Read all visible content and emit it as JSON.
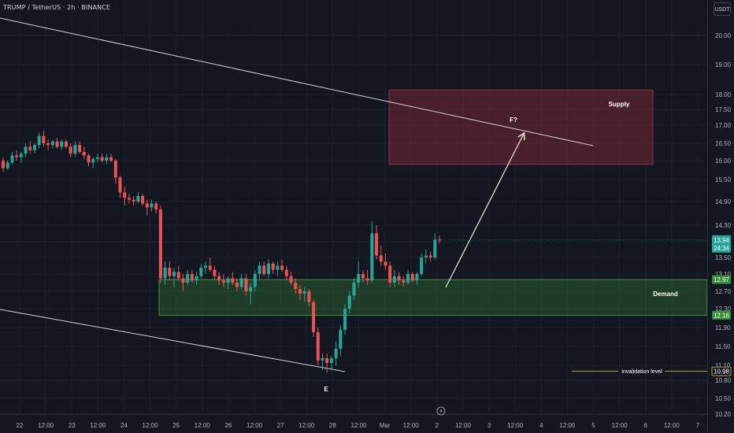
{
  "header": {
    "title": "TRUMP / TetherUS · 2h · BINANCE"
  },
  "currency_button": "USDT",
  "chart_data": {
    "type": "candlestick",
    "symbol": "TRUMP / TetherUS",
    "interval": "2h",
    "exchange": "BINANCE",
    "y_axis": {
      "range": [
        10.2,
        20.3
      ],
      "ticks": [
        "20.00",
        "19.00",
        "18.00",
        "17.50",
        "17.00",
        "16.50",
        "16.00",
        "15.50",
        "14.90",
        "14.30",
        "13.90",
        "13.50",
        "13.10",
        "12.70",
        "12.30",
        "11.90",
        "11.50",
        "11.10",
        "10.80",
        "10.50",
        "10.20"
      ]
    },
    "x_axis": {
      "ticks": [
        "22",
        "12:00",
        "23",
        "12:00",
        "24",
        "12:00",
        "25",
        "12:00",
        "26",
        "12:00",
        "27",
        "12:00",
        "28",
        "12:00",
        "Mar",
        "12:00",
        "2",
        "12:00",
        "3",
        "12:00",
        "4",
        "12:00",
        "5",
        "12:00",
        "6",
        "12:00",
        "7"
      ]
    },
    "last_price": {
      "value": "13.94",
      "countdown": "24:34",
      "color": "#26a69a"
    },
    "zones": [
      {
        "name": "Supply",
        "top": 18.15,
        "bottom": 15.9,
        "color": "#8b2b3a"
      },
      {
        "name": "Demand",
        "top": 12.97,
        "bottom": 12.16,
        "top_label": "12.97",
        "bottom_label": "12.16",
        "color": "#2e6b34"
      }
    ],
    "invalidation": {
      "label": "invalidation level",
      "value": 10.98,
      "value_label": "10.98"
    },
    "annotations": {
      "target": "F?",
      "wave": "E"
    },
    "candles": [
      [
        16.0,
        16.1,
        15.7,
        15.8
      ],
      [
        15.8,
        16.0,
        15.75,
        15.95
      ],
      [
        15.95,
        16.25,
        15.9,
        16.15
      ],
      [
        16.15,
        16.3,
        16.0,
        16.1
      ],
      [
        16.1,
        16.25,
        15.95,
        16.2
      ],
      [
        16.2,
        16.5,
        16.1,
        16.4
      ],
      [
        16.4,
        16.55,
        16.2,
        16.3
      ],
      [
        16.3,
        16.5,
        16.2,
        16.45
      ],
      [
        16.45,
        16.8,
        16.35,
        16.7
      ],
      [
        16.7,
        16.85,
        16.4,
        16.5
      ],
      [
        16.5,
        16.6,
        16.3,
        16.45
      ],
      [
        16.45,
        16.6,
        16.35,
        16.55
      ],
      [
        16.55,
        16.65,
        16.35,
        16.4
      ],
      [
        16.4,
        16.6,
        16.3,
        16.55
      ],
      [
        16.55,
        16.6,
        16.35,
        16.4
      ],
      [
        16.4,
        16.5,
        16.1,
        16.2
      ],
      [
        16.2,
        16.55,
        16.1,
        16.45
      ],
      [
        16.45,
        16.55,
        16.2,
        16.25
      ],
      [
        16.25,
        16.4,
        16.05,
        16.15
      ],
      [
        16.15,
        16.2,
        15.85,
        15.95
      ],
      [
        15.95,
        16.1,
        15.8,
        16.05
      ],
      [
        16.05,
        16.2,
        15.95,
        16.1
      ],
      [
        16.1,
        16.2,
        15.95,
        16.0
      ],
      [
        16.0,
        16.2,
        15.9,
        16.1
      ],
      [
        16.1,
        16.2,
        15.95,
        16.0
      ],
      [
        16.0,
        16.05,
        15.4,
        15.55
      ],
      [
        15.55,
        15.6,
        15.0,
        15.15
      ],
      [
        15.15,
        15.3,
        14.8,
        15.0
      ],
      [
        15.0,
        15.1,
        14.85,
        14.95
      ],
      [
        14.95,
        15.05,
        14.8,
        14.9
      ],
      [
        14.9,
        15.15,
        14.85,
        15.05
      ],
      [
        15.05,
        15.1,
        14.8,
        14.85
      ],
      [
        14.85,
        14.95,
        14.55,
        14.75
      ],
      [
        14.75,
        14.95,
        14.65,
        14.85
      ],
      [
        14.85,
        14.9,
        14.6,
        14.7
      ],
      [
        14.7,
        14.8,
        12.9,
        13.0
      ],
      [
        13.0,
        13.4,
        12.85,
        13.25
      ],
      [
        13.25,
        13.4,
        12.95,
        13.05
      ],
      [
        13.05,
        13.25,
        12.8,
        13.15
      ],
      [
        13.15,
        13.3,
        12.95,
        13.0
      ],
      [
        13.0,
        13.1,
        12.7,
        12.9
      ],
      [
        12.9,
        13.2,
        12.85,
        13.1
      ],
      [
        13.1,
        13.2,
        12.9,
        12.95
      ],
      [
        12.95,
        13.15,
        12.85,
        13.05
      ],
      [
        13.05,
        13.35,
        13.0,
        13.25
      ],
      [
        13.25,
        13.4,
        13.1,
        13.3
      ],
      [
        13.3,
        13.5,
        13.15,
        13.2
      ],
      [
        13.2,
        13.3,
        12.95,
        13.05
      ],
      [
        13.05,
        13.15,
        12.85,
        12.95
      ],
      [
        12.95,
        13.1,
        12.8,
        12.9
      ],
      [
        12.9,
        13.05,
        12.75,
        13.0
      ],
      [
        13.0,
        13.15,
        12.85,
        12.9
      ],
      [
        12.9,
        13.0,
        12.7,
        12.8
      ],
      [
        12.8,
        13.1,
        12.75,
        13.0
      ],
      [
        13.0,
        13.1,
        12.6,
        12.7
      ],
      [
        12.7,
        12.9,
        12.4,
        12.8
      ],
      [
        12.8,
        13.2,
        12.7,
        13.1
      ],
      [
        13.1,
        13.4,
        13.0,
        13.3
      ],
      [
        13.3,
        13.4,
        13.05,
        13.1
      ],
      [
        13.1,
        13.45,
        13.0,
        13.35
      ],
      [
        13.35,
        13.4,
        13.1,
        13.2
      ],
      [
        13.2,
        13.4,
        13.05,
        13.3
      ],
      [
        13.3,
        13.45,
        13.15,
        13.2
      ],
      [
        13.2,
        13.3,
        12.95,
        13.05
      ],
      [
        13.05,
        13.15,
        12.85,
        12.9
      ],
      [
        12.9,
        13.0,
        12.65,
        12.75
      ],
      [
        12.75,
        12.85,
        12.5,
        12.65
      ],
      [
        12.65,
        12.8,
        12.45,
        12.7
      ],
      [
        12.7,
        12.75,
        12.35,
        12.45
      ],
      [
        12.45,
        12.5,
        11.7,
        11.8
      ],
      [
        11.8,
        11.9,
        11.1,
        11.2
      ],
      [
        11.2,
        11.35,
        11.0,
        11.25
      ],
      [
        11.25,
        11.35,
        10.95,
        11.15
      ],
      [
        11.15,
        11.3,
        11.0,
        11.25
      ],
      [
        11.25,
        11.6,
        11.1,
        11.45
      ],
      [
        11.45,
        11.95,
        11.3,
        11.85
      ],
      [
        11.85,
        12.4,
        11.75,
        12.3
      ],
      [
        12.3,
        12.7,
        12.2,
        12.6
      ],
      [
        12.6,
        13.0,
        12.5,
        12.9
      ],
      [
        12.9,
        13.4,
        12.8,
        13.1
      ],
      [
        13.1,
        13.2,
        12.9,
        13.0
      ],
      [
        13.0,
        13.2,
        12.85,
        12.95
      ],
      [
        12.95,
        14.4,
        12.9,
        14.1
      ],
      [
        14.1,
        14.3,
        13.45,
        13.55
      ],
      [
        13.55,
        13.8,
        13.3,
        13.4
      ],
      [
        13.4,
        13.6,
        13.2,
        13.3
      ],
      [
        13.3,
        13.4,
        12.8,
        12.9
      ],
      [
        12.9,
        13.2,
        12.8,
        13.05
      ],
      [
        13.05,
        13.15,
        12.85,
        12.95
      ],
      [
        12.95,
        13.05,
        12.8,
        12.9
      ],
      [
        12.9,
        13.2,
        12.85,
        13.1
      ],
      [
        13.1,
        13.15,
        12.9,
        12.95
      ],
      [
        12.95,
        13.15,
        12.85,
        13.1
      ],
      [
        13.1,
        13.6,
        13.05,
        13.5
      ],
      [
        13.5,
        13.7,
        13.35,
        13.55
      ],
      [
        13.55,
        13.65,
        13.4,
        13.5
      ],
      [
        13.5,
        14.1,
        13.45,
        13.95
      ],
      [
        13.95,
        14.05,
        13.85,
        13.94
      ]
    ]
  }
}
